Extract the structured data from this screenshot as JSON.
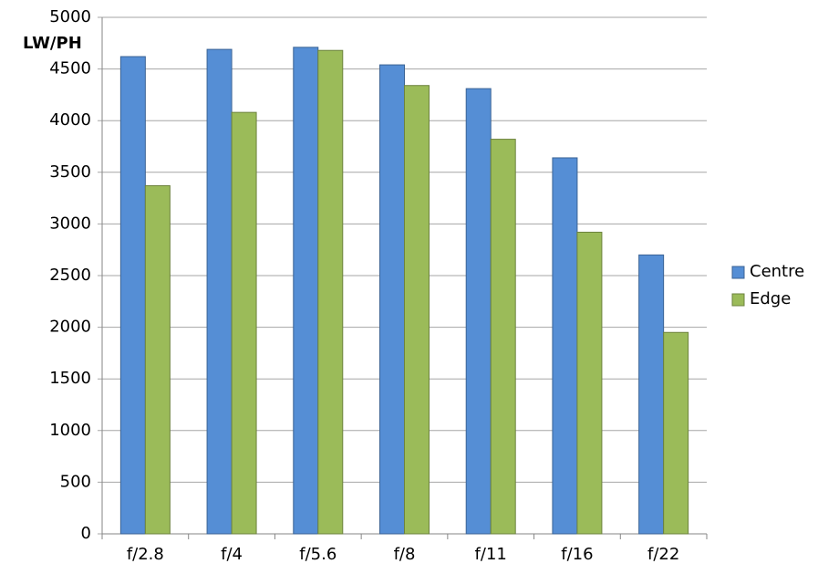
{
  "chart_data": {
    "type": "bar",
    "y_label": "LW/PH",
    "categories": [
      "f/2.8",
      "f/4",
      "f/5.6",
      "f/8",
      "f/11",
      "f/16",
      "f/22"
    ],
    "series": [
      {
        "name": "Centre",
        "color": "#558ed5",
        "values": [
          4620,
          4690,
          4710,
          4540,
          4310,
          3640,
          2700
        ]
      },
      {
        "name": "Edge",
        "color": "#9bbb59",
        "values": [
          3370,
          4080,
          4680,
          4340,
          3820,
          2920,
          1950
        ]
      }
    ],
    "ylim": [
      0,
      5000
    ],
    "yticks": [
      0,
      500,
      1000,
      1500,
      2000,
      2500,
      3000,
      3500,
      4000,
      4500,
      5000
    ],
    "grid": true,
    "legend": "right"
  }
}
